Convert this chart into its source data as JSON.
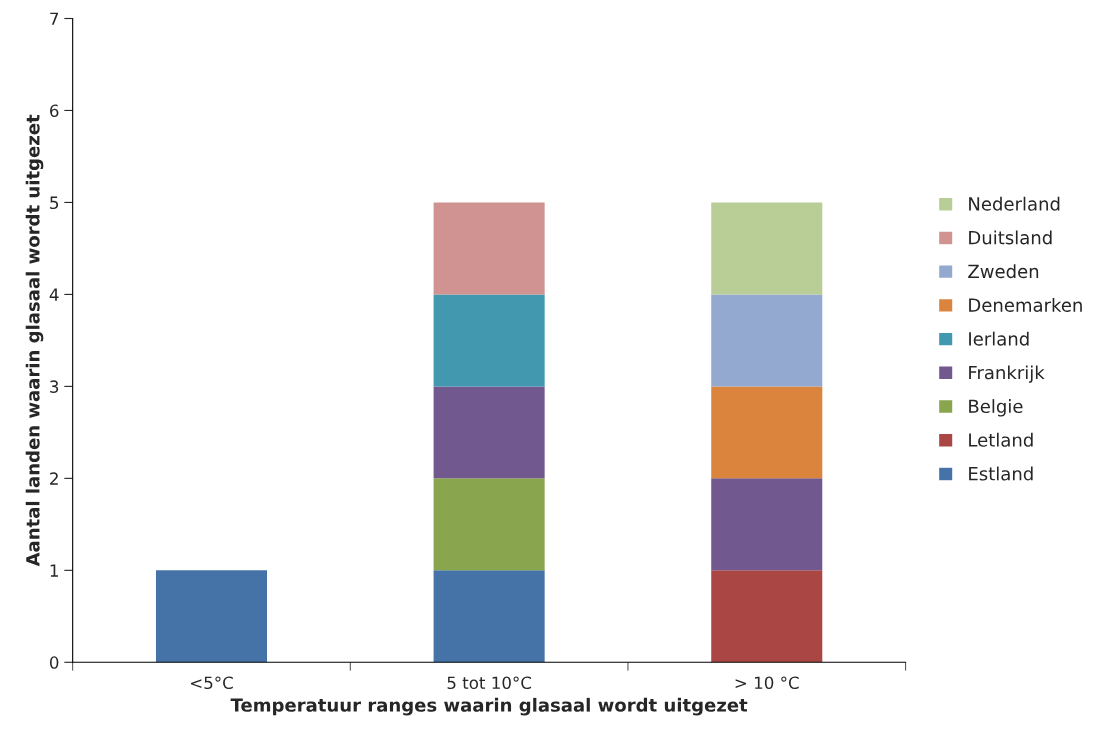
{
  "chart_data": {
    "type": "bar",
    "stacked": true,
    "xlabel": "Temperatuur ranges waarin glasaal wordt uitgezet",
    "ylabel": "Aantal landen waarin glasaal wordt uitgezet",
    "categories": [
      "<5°C",
      "5 tot 10°C",
      "> 10 °C"
    ],
    "series": [
      {
        "name": "Estland",
        "color": "#4572a7",
        "values": [
          1,
          1,
          0
        ]
      },
      {
        "name": "Letland",
        "color": "#aa4643",
        "values": [
          0,
          0,
          1
        ]
      },
      {
        "name": "Belgie",
        "color": "#89a54e",
        "values": [
          0,
          1,
          0
        ]
      },
      {
        "name": "Frankrijk",
        "color": "#71588f",
        "values": [
          0,
          1,
          1
        ]
      },
      {
        "name": "Ierland",
        "color": "#4198af",
        "values": [
          0,
          1,
          0
        ]
      },
      {
        "name": "Denemarken",
        "color": "#db843d",
        "values": [
          0,
          0,
          1
        ]
      },
      {
        "name": "Zweden",
        "color": "#93a9cf",
        "values": [
          0,
          0,
          1
        ]
      },
      {
        "name": "Duitsland",
        "color": "#d19392",
        "values": [
          0,
          1,
          0
        ]
      },
      {
        "name": "Nederland",
        "color": "#b9cd96",
        "values": [
          0,
          0,
          1
        ]
      }
    ],
    "ylim": [
      0,
      7
    ],
    "yticks": [
      0,
      1,
      2,
      3,
      4,
      5,
      6,
      7
    ],
    "grid": false,
    "legend": "right"
  }
}
